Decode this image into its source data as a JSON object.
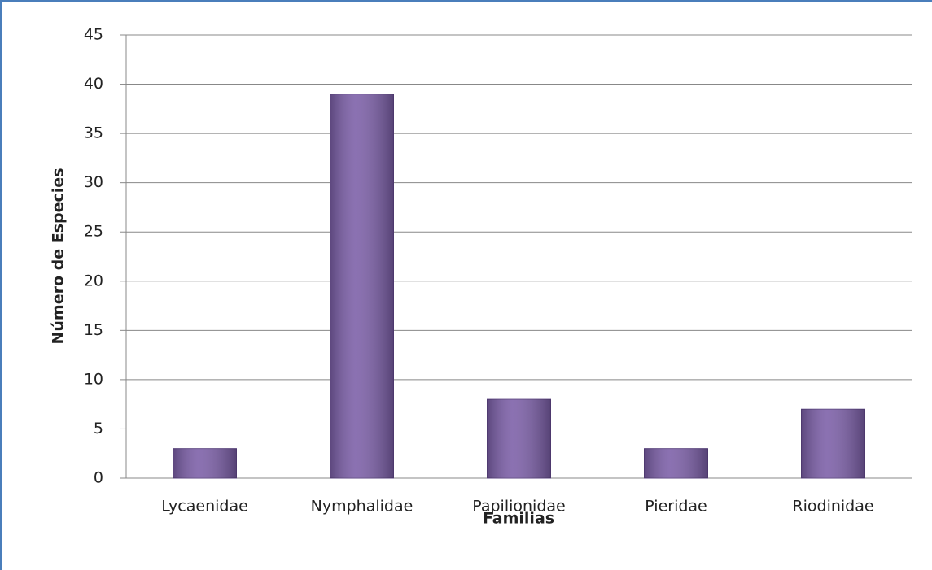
{
  "chart_data": {
    "type": "bar",
    "xlabel": "Familias",
    "ylabel": "Número de Especies",
    "categories": [
      "Lycaenidae",
      "Nymphalidae",
      "Papilionidae",
      "Pieridae",
      "Riodinidae"
    ],
    "values": [
      3,
      39,
      8,
      3,
      7
    ],
    "color": "#7b5ea7",
    "ylim": [
      0,
      45
    ],
    "yticks": [
      0,
      5,
      10,
      15,
      20,
      25,
      30,
      35,
      40,
      45
    ],
    "grid": true
  }
}
